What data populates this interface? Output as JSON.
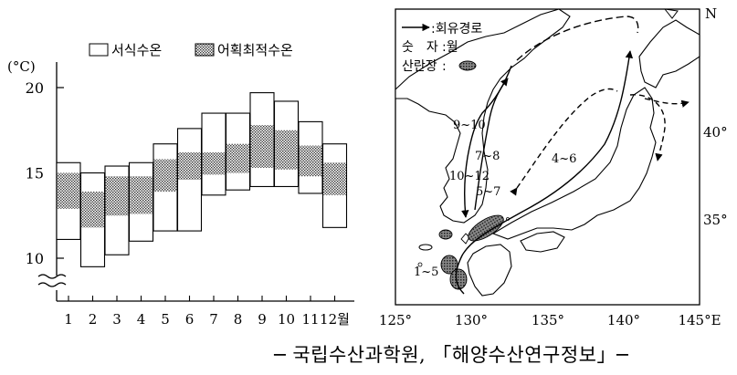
{
  "chart_data": [
    {
      "type": "bar",
      "ylabel": "(°C)",
      "ylim": [
        9,
        21
      ],
      "yticks": [
        "10",
        "15",
        "20"
      ],
      "categories": [
        "1",
        "2",
        "3",
        "4",
        "5",
        "6",
        "7",
        "8",
        "9",
        "10",
        "11",
        "12월"
      ],
      "legend": {
        "placement": "top",
        "entries": [
          {
            "label": "서식수온",
            "pattern": "white"
          },
          {
            "label": "어획최적수온",
            "pattern": "dotted"
          }
        ]
      },
      "series": [
        {
          "name": "서식수온",
          "low": [
            11.1,
            9.5,
            10.2,
            11.0,
            11.6,
            11.6,
            13.7,
            14.0,
            14.2,
            14.2,
            13.8,
            11.8
          ],
          "high": [
            15.6,
            15.0,
            15.4,
            15.6,
            16.7,
            17.6,
            18.5,
            18.5,
            19.7,
            19.2,
            18.0,
            16.7
          ]
        },
        {
          "name": "어획최적수온",
          "low": [
            12.9,
            11.8,
            12.5,
            12.6,
            13.9,
            14.6,
            14.9,
            15.0,
            15.3,
            15.2,
            14.8,
            13.7
          ],
          "high": [
            15.0,
            13.9,
            14.8,
            14.8,
            15.8,
            16.2,
            16.2,
            16.7,
            17.8,
            17.5,
            16.6,
            15.6
          ]
        }
      ]
    },
    {
      "type": "map",
      "legend": {
        "route": ":회유경로",
        "number_key": "숫　자",
        "number_value": ":월",
        "spawning_key": "산란장",
        "spawning_value": ":"
      },
      "x_ticks": [
        "125°",
        "130°",
        "135°",
        "140°",
        "145°E"
      ],
      "y_ticks": [
        "N",
        "40°",
        "35°"
      ],
      "route_labels": [
        "9~10",
        "7~8",
        "10~12",
        "5~7",
        "4~6",
        "1~5"
      ]
    }
  ],
  "source": "─ 국립수산과학원, 「해양수산연구정보」─"
}
